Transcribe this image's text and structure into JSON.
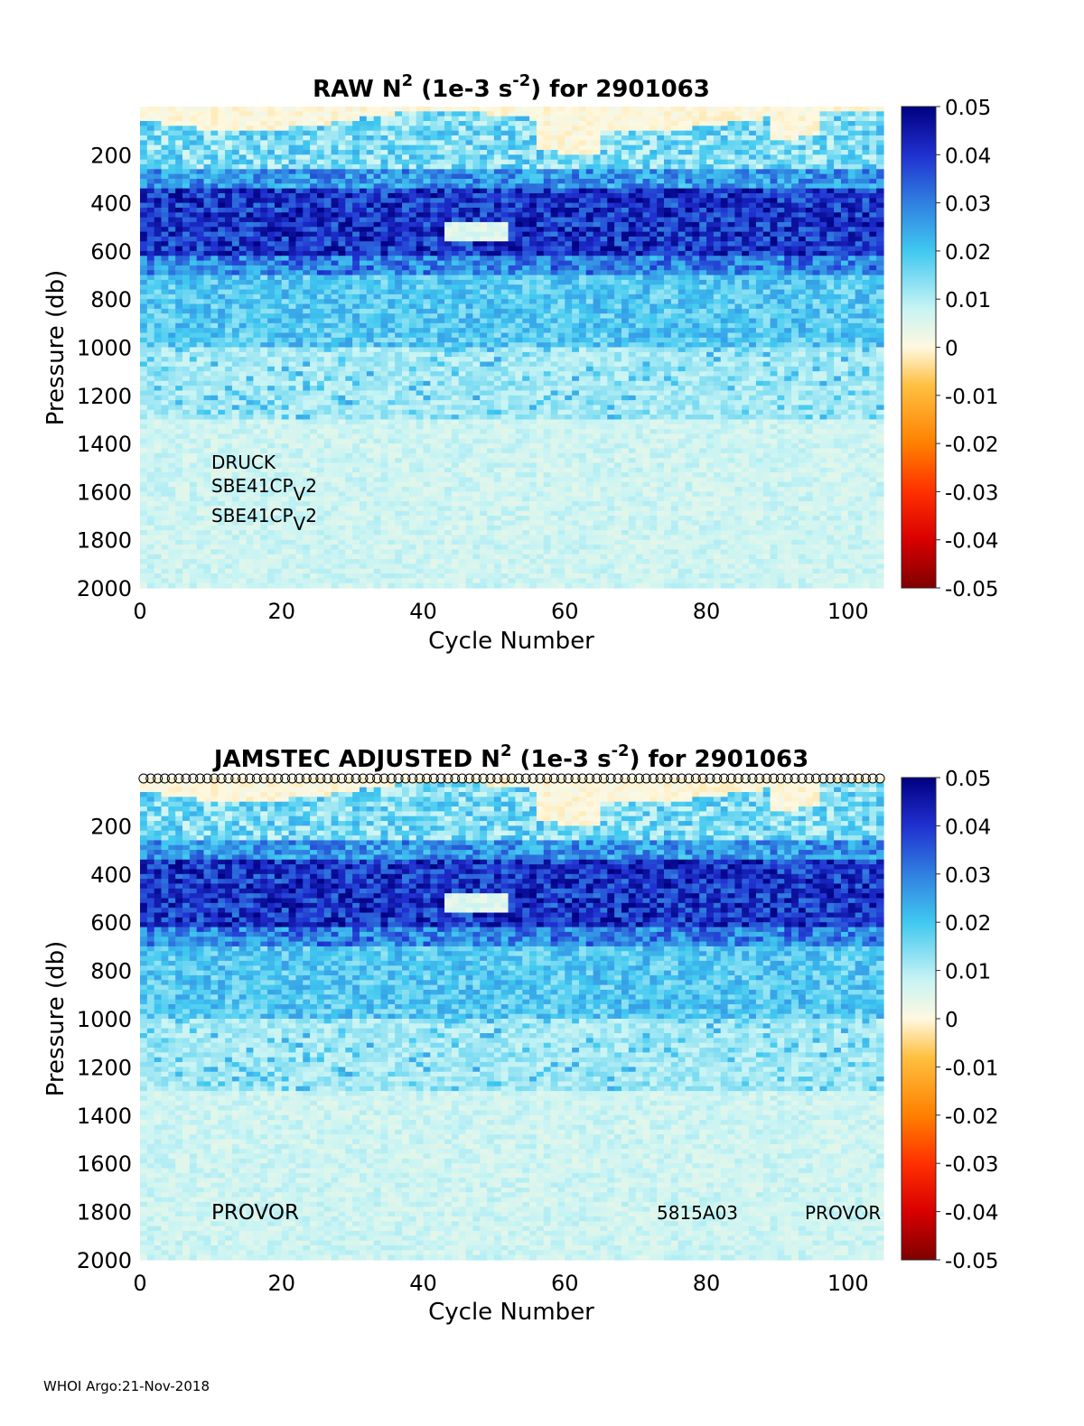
{
  "footer": "WHOI Argo:21-Nov-2018",
  "colorbar": {
    "ticks": [
      "0.05",
      "0.04",
      "0.03",
      "0.02",
      "0.01",
      "0",
      "-0.01",
      "-0.02",
      "-0.03",
      "-0.04",
      "-0.05"
    ],
    "range": [
      -0.05,
      0.05
    ]
  },
  "chart_data": [
    {
      "type": "heatmap",
      "title": "RAW N² (1e-3 s⁻²) for 2901063",
      "title_parts": {
        "pre": "RAW N",
        "sup1": "2",
        "mid": " (1e-3 s",
        "sup2": "-2",
        "post": ") for 2901063"
      },
      "xlabel": "Cycle Number",
      "ylabel": "Pressure (db)",
      "xlim": [
        0,
        105
      ],
      "ylim": [
        2000,
        0
      ],
      "x_ticks": [
        "0",
        "20",
        "40",
        "60",
        "80",
        "100"
      ],
      "y_ticks": [
        "200",
        "400",
        "600",
        "800",
        "1000",
        "1200",
        "1400",
        "1600",
        "1800",
        "2000"
      ],
      "clim": [
        -0.05,
        0.05
      ],
      "colormap": "jet-like with cream near 0",
      "annotations": [
        "DRUCK",
        "SBE41CP",
        "V",
        "2",
        "SBE41CP",
        "V",
        "2"
      ],
      "description_levels": {
        "surface_0_150db": "near 0 to slightly negative",
        "band_150_350db": "0.005-0.02",
        "band_350_700db": "0.03-0.05",
        "band_700_1000db": "0.02-0.01",
        "deep_1000_2000db": "0.005-0.01"
      }
    },
    {
      "type": "heatmap",
      "title": "JAMSTEC  ADJUSTED N² (1e-3 s⁻²) for 2901063",
      "title_parts": {
        "pre": "JAMSTEC  ADJUSTED N",
        "sup1": "2",
        "mid": " (1e-3 s",
        "sup2": "-2",
        "post": ") for 2901063"
      },
      "xlabel": "Cycle Number",
      "ylabel": "Pressure (db)",
      "xlim": [
        0,
        105
      ],
      "ylim": [
        2000,
        0
      ],
      "x_ticks": [
        "0",
        "20",
        "40",
        "60",
        "80",
        "100"
      ],
      "y_ticks": [
        "200",
        "400",
        "600",
        "800",
        "1000",
        "1200",
        "1400",
        "1600",
        "1800",
        "2000"
      ],
      "clim": [
        -0.05,
        0.05
      ],
      "annotations": [
        "PROVOR",
        "5815A03",
        "PROVOR"
      ],
      "qc_markers": "open circles along top for each cycle"
    }
  ],
  "colors": {
    "bg": "#ffffff",
    "axis": "#262626"
  }
}
